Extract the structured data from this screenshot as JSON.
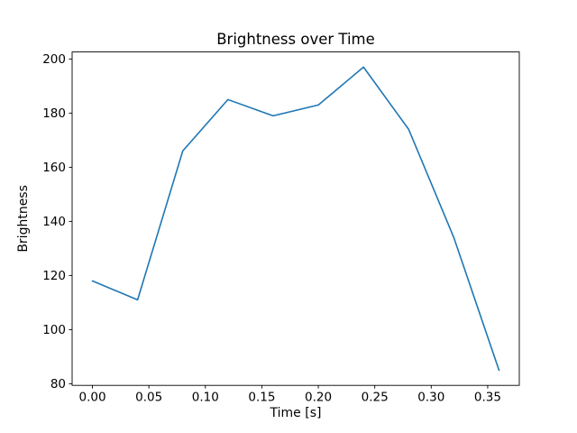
{
  "figure": {
    "background": "#ffffff",
    "line_color": "#1f77b4",
    "axis_color": "#000000",
    "text_color": "#000000"
  },
  "chart_data": {
    "type": "line",
    "title": "Brightness over Time",
    "xlabel": "Time [s]",
    "ylabel": "Brightness",
    "x": [
      0.0,
      0.04,
      0.08,
      0.12,
      0.16,
      0.2,
      0.24,
      0.28,
      0.32,
      0.36
    ],
    "y": [
      118,
      111,
      166,
      185,
      179,
      183,
      197,
      174,
      134,
      85
    ],
    "xlim": [
      -0.018,
      0.378
    ],
    "ylim": [
      79.4,
      202.6
    ],
    "xticks": {
      "values": [
        0.0,
        0.05,
        0.1,
        0.15,
        0.2,
        0.25,
        0.3,
        0.35
      ],
      "labels": [
        "0.00",
        "0.05",
        "0.10",
        "0.15",
        "0.20",
        "0.25",
        "0.30",
        "0.35"
      ]
    },
    "yticks": {
      "values": [
        80,
        100,
        120,
        140,
        160,
        180,
        200
      ],
      "labels": [
        "80",
        "100",
        "120",
        "140",
        "160",
        "180",
        "200"
      ]
    },
    "grid": false,
    "legend": null
  }
}
